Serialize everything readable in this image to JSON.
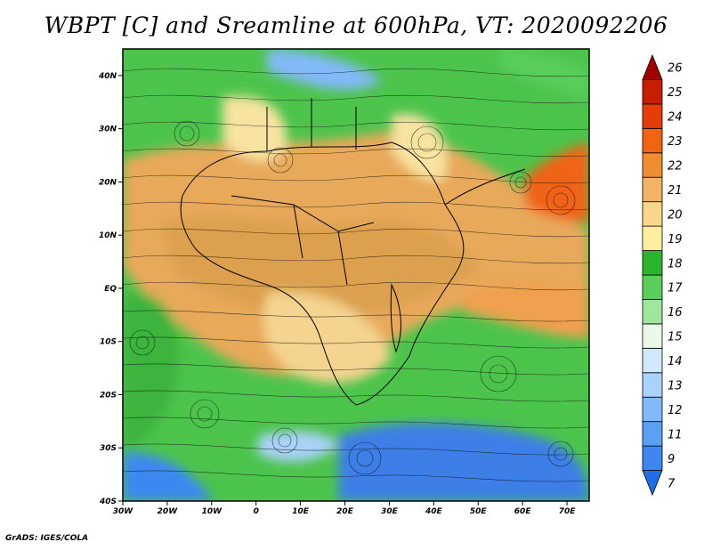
{
  "title": "WBPT [C] and Sreamline at 600hPa, VT: 2020092206",
  "credit": "GrADS: IGES/COLA",
  "map": {
    "lon_range": [
      -30,
      75
    ],
    "lat_range": [
      -40,
      45
    ],
    "lat_ticks": [
      {
        "value": 40,
        "label": "40N"
      },
      {
        "value": 30,
        "label": "30N"
      },
      {
        "value": 20,
        "label": "20N"
      },
      {
        "value": 10,
        "label": "10N"
      },
      {
        "value": 0,
        "label": "EQ"
      },
      {
        "value": -10,
        "label": "10S"
      },
      {
        "value": -20,
        "label": "20S"
      },
      {
        "value": -30,
        "label": "30S"
      },
      {
        "value": -40,
        "label": "40S"
      }
    ],
    "lon_ticks": [
      {
        "value": -30,
        "label": "30W"
      },
      {
        "value": -20,
        "label": "20W"
      },
      {
        "value": -10,
        "label": "10W"
      },
      {
        "value": 0,
        "label": "0"
      },
      {
        "value": 10,
        "label": "10E"
      },
      {
        "value": 20,
        "label": "20E"
      },
      {
        "value": 30,
        "label": "30E"
      },
      {
        "value": 40,
        "label": "40E"
      },
      {
        "value": 50,
        "label": "50E"
      },
      {
        "value": 60,
        "label": "60E"
      },
      {
        "value": 70,
        "label": "70E"
      }
    ]
  },
  "colorbar": {
    "levels": [
      "7",
      "9",
      "11",
      "12",
      "13",
      "14",
      "15",
      "16",
      "17",
      "18",
      "19",
      "20",
      "21",
      "22",
      "23",
      "24",
      "25",
      "26"
    ],
    "colors": [
      "#1e6ee6",
      "#3c88f0",
      "#5aa0f5",
      "#82b9f8",
      "#aad2fa",
      "#d2e8fc",
      "#eaf8ea",
      "#9ee69e",
      "#5acd5a",
      "#2db42d",
      "#fff0a0",
      "#f8d68c",
      "#f0b464",
      "#f08c32",
      "#f06414",
      "#e63c0a",
      "#c81e00",
      "#a00000"
    ]
  },
  "regions": [
    {
      "name": "land-green",
      "color": "#3cbe3c"
    },
    {
      "name": "land-tan",
      "color": "#f0c07a"
    },
    {
      "name": "sea-blue",
      "color": "#5aa0f5"
    }
  ]
}
